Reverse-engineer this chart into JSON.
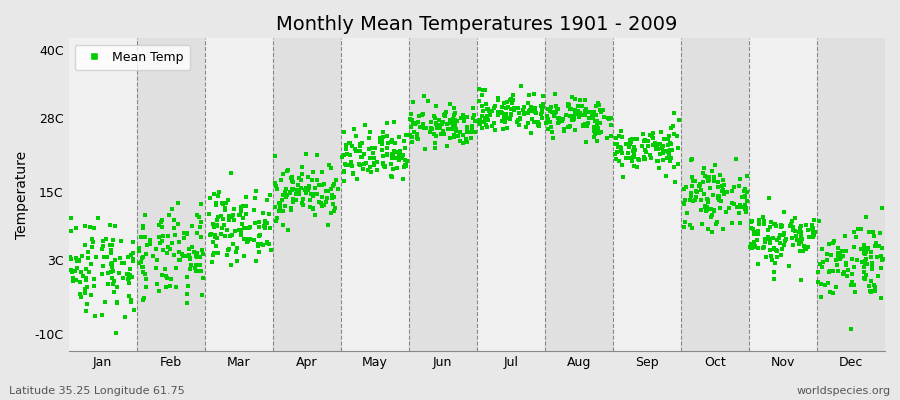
{
  "title": "Monthly Mean Temperatures 1901 - 2009",
  "ylabel": "Temperature",
  "yticks": [
    -10,
    3,
    15,
    28,
    40
  ],
  "ytick_labels": [
    "-10C",
    "3C",
    "15C",
    "28C",
    "40C"
  ],
  "ylim": [
    -13,
    42
  ],
  "months": [
    "Jan",
    "Feb",
    "Mar",
    "Apr",
    "May",
    "Jun",
    "Jul",
    "Aug",
    "Sep",
    "Oct",
    "Nov",
    "Dec"
  ],
  "dot_color": "#00CC00",
  "bg_color_light": "#F0F0F0",
  "bg_color_dark": "#E0E0E0",
  "figure_bg": "#E8E8E8",
  "title_fontsize": 14,
  "axis_fontsize": 10,
  "tick_fontsize": 9,
  "legend_label": "Mean Temp",
  "bottom_left_text": "Latitude 35.25 Longitude 61.75",
  "bottom_right_text": "worldspecies.org",
  "num_years": 109,
  "monthly_means": [
    2.0,
    3.5,
    9.0,
    15.0,
    21.0,
    26.5,
    29.0,
    28.0,
    22.5,
    14.0,
    7.0,
    3.0
  ],
  "monthly_stds": [
    4.5,
    4.0,
    3.0,
    2.5,
    2.5,
    1.8,
    1.8,
    1.8,
    2.0,
    2.5,
    2.5,
    3.5
  ],
  "seed": 42
}
